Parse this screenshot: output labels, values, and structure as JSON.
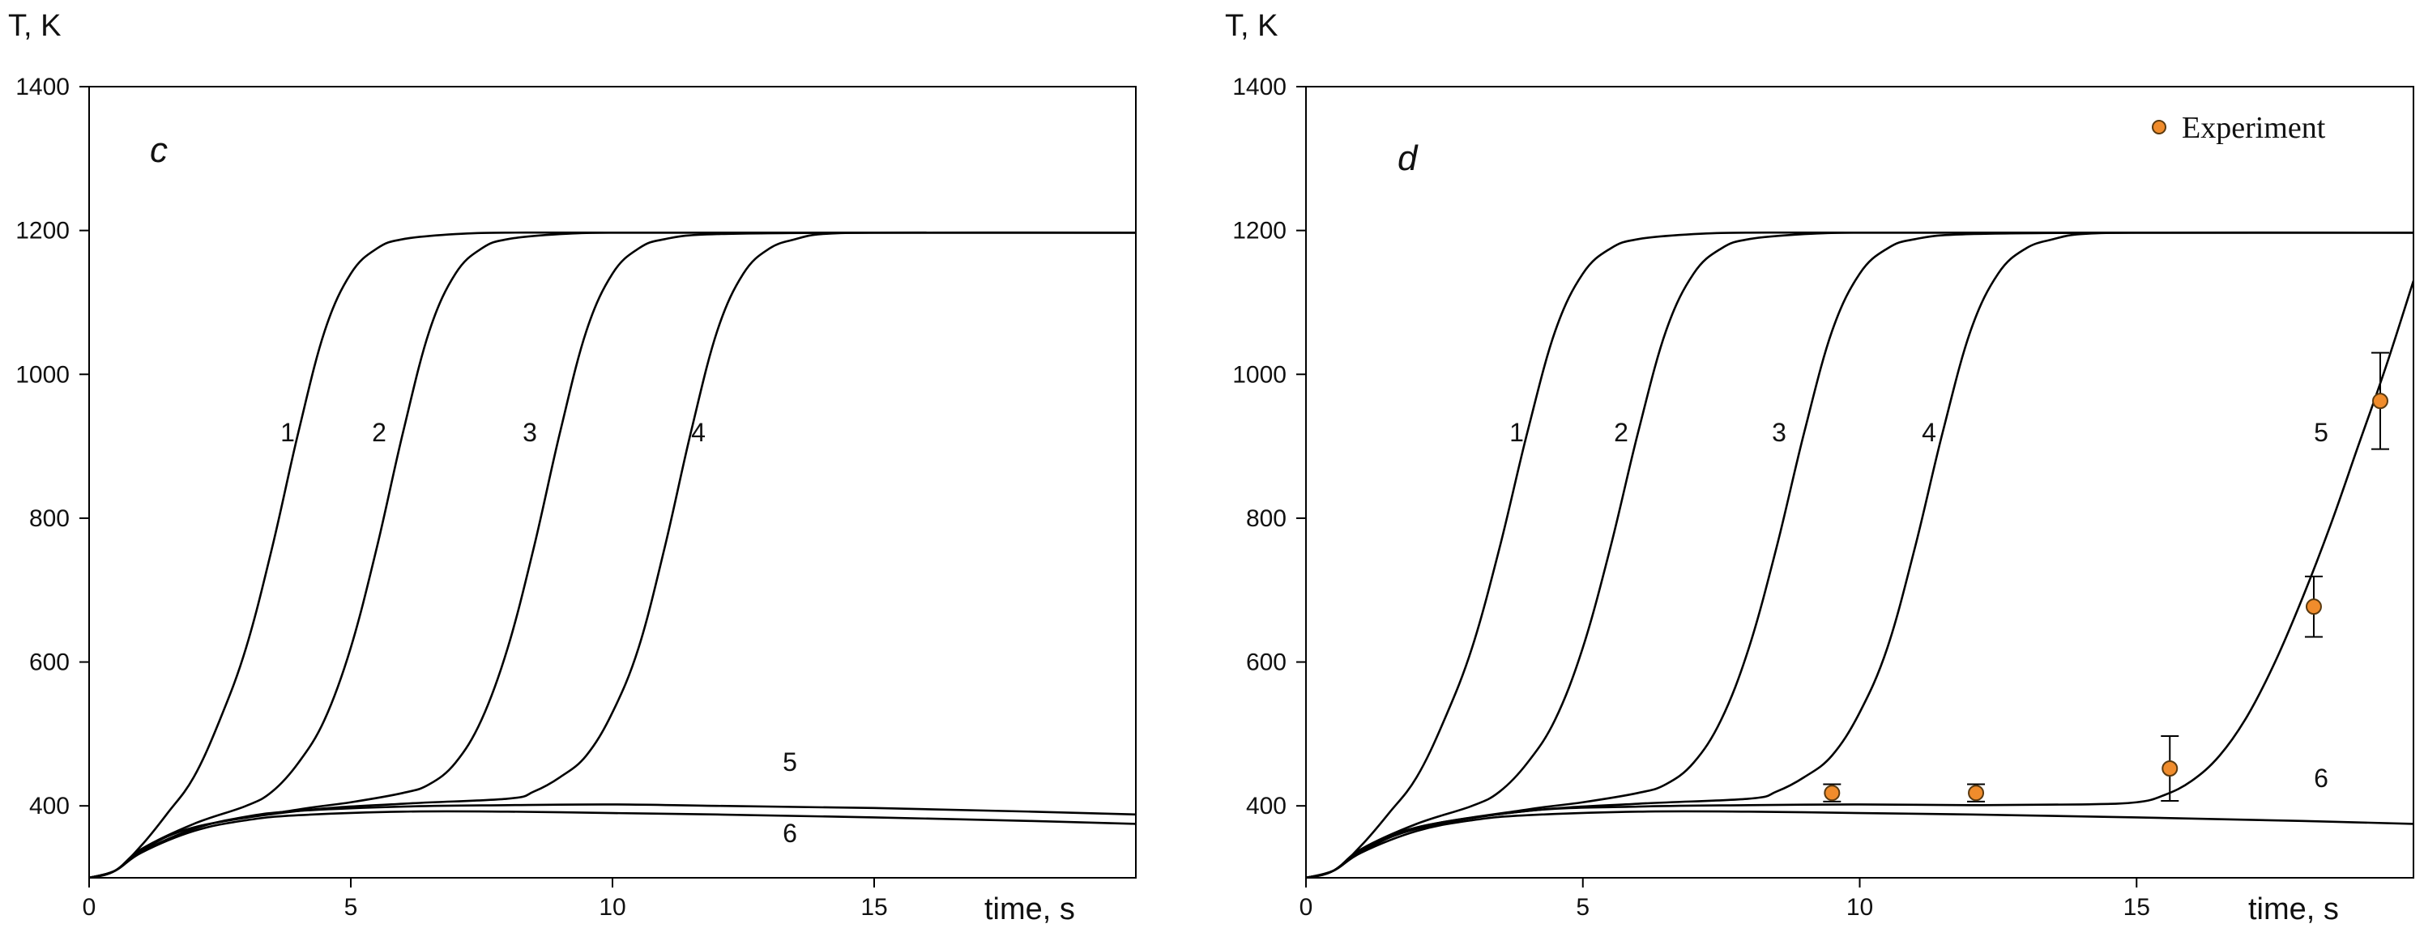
{
  "chart_data": [
    {
      "type": "line",
      "panel_label": "c",
      "xlabel": "time, s",
      "ylabel": "T, K",
      "xlim": [
        0,
        20
      ],
      "ylim": [
        300,
        1400
      ],
      "xticks": [
        0,
        5,
        10,
        15
      ],
      "yticks": [
        400,
        600,
        800,
        1000,
        1200,
        1400
      ],
      "series": [
        {
          "label": "1",
          "x": [
            0.5,
            1,
            1.5,
            2,
            2.5,
            3,
            3.5,
            4,
            4.5,
            5,
            5.5,
            6,
            7,
            8,
            10,
            15,
            20
          ],
          "values": [
            310,
            345,
            390,
            440,
            520,
            620,
            760,
            920,
            1060,
            1140,
            1175,
            1188,
            1195,
            1197,
            1197,
            1197,
            1197
          ]
        },
        {
          "label": "2",
          "x": [
            0.5,
            1,
            2,
            3,
            3.5,
            4,
            4.5,
            5,
            5.5,
            6,
            6.5,
            7,
            7.5,
            8,
            9,
            10,
            12,
            15,
            20
          ],
          "values": [
            310,
            340,
            375,
            400,
            420,
            460,
            520,
            620,
            760,
            920,
            1060,
            1140,
            1175,
            1188,
            1195,
            1197,
            1197,
            1197,
            1197
          ]
        },
        {
          "label": "3",
          "x": [
            0.5,
            1,
            2,
            4,
            5,
            6,
            6.5,
            7,
            7.5,
            8,
            8.5,
            9,
            9.5,
            10,
            10.5,
            11,
            12,
            15,
            20
          ],
          "values": [
            310,
            338,
            370,
            395,
            405,
            418,
            430,
            460,
            520,
            620,
            760,
            920,
            1060,
            1140,
            1175,
            1188,
            1195,
            1197,
            1197
          ]
        },
        {
          "label": "4",
          "x": [
            0.5,
            1,
            2,
            4,
            6,
            8,
            8.5,
            9,
            9.5,
            10,
            10.5,
            11,
            11.5,
            12,
            12.5,
            13,
            13.5,
            14,
            15,
            17,
            20
          ],
          "values": [
            310,
            338,
            370,
            393,
            403,
            410,
            420,
            440,
            470,
            530,
            620,
            760,
            920,
            1060,
            1140,
            1175,
            1188,
            1195,
            1197,
            1197,
            1197
          ]
        },
        {
          "label": "5",
          "x": [
            0.5,
            1,
            2,
            3,
            4,
            6,
            8,
            10,
            12,
            15,
            18,
            20
          ],
          "values": [
            310,
            336,
            368,
            385,
            393,
            399,
            401,
            402,
            400,
            397,
            392,
            388
          ]
        },
        {
          "label": "6",
          "x": [
            0.5,
            1,
            2,
            3,
            4,
            6,
            8,
            10,
            12,
            15,
            18,
            20
          ],
          "values": [
            310,
            335,
            365,
            380,
            387,
            392,
            392,
            390,
            388,
            384,
            379,
            375
          ]
        }
      ],
      "grid": false,
      "legend": "none"
    },
    {
      "type": "line",
      "panel_label": "d",
      "xlabel": "time, s",
      "ylabel": "T, K",
      "xlim": [
        0,
        20
      ],
      "ylim": [
        300,
        1400
      ],
      "xticks": [
        0,
        5,
        10,
        15
      ],
      "yticks": [
        400,
        600,
        800,
        1000,
        1200,
        1400
      ],
      "series": [
        {
          "label": "1",
          "x": [
            0.5,
            1,
            1.5,
            2,
            2.5,
            3,
            3.5,
            4,
            4.5,
            5,
            5.5,
            6,
            7,
            8,
            10,
            15,
            20
          ],
          "values": [
            310,
            345,
            390,
            440,
            520,
            620,
            760,
            920,
            1060,
            1140,
            1175,
            1188,
            1195,
            1197,
            1197,
            1197,
            1197
          ]
        },
        {
          "label": "2",
          "x": [
            0.5,
            1,
            2,
            3,
            3.5,
            4,
            4.5,
            5,
            5.5,
            6,
            6.5,
            7,
            7.5,
            8,
            9,
            10,
            12,
            15,
            20
          ],
          "values": [
            310,
            340,
            375,
            400,
            420,
            460,
            520,
            620,
            760,
            920,
            1060,
            1140,
            1175,
            1188,
            1195,
            1197,
            1197,
            1197,
            1197
          ]
        },
        {
          "label": "3",
          "x": [
            0.5,
            1,
            2,
            4,
            5,
            6,
            6.5,
            7,
            7.5,
            8,
            8.5,
            9,
            9.5,
            10,
            10.5,
            11,
            12,
            15,
            20
          ],
          "values": [
            310,
            338,
            370,
            395,
            405,
            418,
            430,
            460,
            520,
            620,
            760,
            920,
            1060,
            1140,
            1175,
            1188,
            1195,
            1197,
            1197
          ]
        },
        {
          "label": "4",
          "x": [
            0.5,
            1,
            2,
            4,
            6,
            8,
            8.5,
            9,
            9.5,
            10,
            10.5,
            11,
            11.5,
            12,
            12.5,
            13,
            13.5,
            14,
            15,
            17,
            20
          ],
          "values": [
            310,
            338,
            370,
            393,
            403,
            410,
            420,
            440,
            470,
            530,
            620,
            760,
            920,
            1060,
            1140,
            1175,
            1188,
            1195,
            1197,
            1197,
            1197
          ]
        },
        {
          "label": "5",
          "x": [
            0.5,
            1,
            2,
            4,
            6,
            8,
            10,
            12,
            14,
            15,
            15.5,
            16,
            16.5,
            17,
            17.5,
            18,
            18.5,
            19,
            19.5,
            20
          ],
          "values": [
            310,
            336,
            368,
            393,
            399,
            401,
            402,
            401,
            402,
            405,
            415,
            435,
            470,
            525,
            600,
            690,
            790,
            900,
            1010,
            1130
          ]
        },
        {
          "label": "6",
          "x": [
            0.5,
            1,
            2,
            3,
            4,
            6,
            8,
            10,
            12,
            15,
            18,
            20
          ],
          "values": [
            310,
            335,
            365,
            380,
            387,
            392,
            392,
            390,
            388,
            384,
            379,
            375
          ]
        }
      ],
      "experiment": {
        "label": "Experiment",
        "points": [
          {
            "x": 9.5,
            "y": 418,
            "err": 12
          },
          {
            "x": 12.1,
            "y": 418,
            "err": 12
          },
          {
            "x": 15.6,
            "y": 452,
            "err": 45
          },
          {
            "x": 18.2,
            "y": 677,
            "err": 42
          },
          {
            "x": 19.4,
            "y": 963,
            "err": 67
          }
        ]
      },
      "grid": false,
      "legend": "top-right"
    }
  ],
  "colors": {
    "curve": "#000000",
    "axis": "#000000",
    "experiment_fill": "#f08c2c",
    "experiment_stroke": "#5a3a10"
  }
}
